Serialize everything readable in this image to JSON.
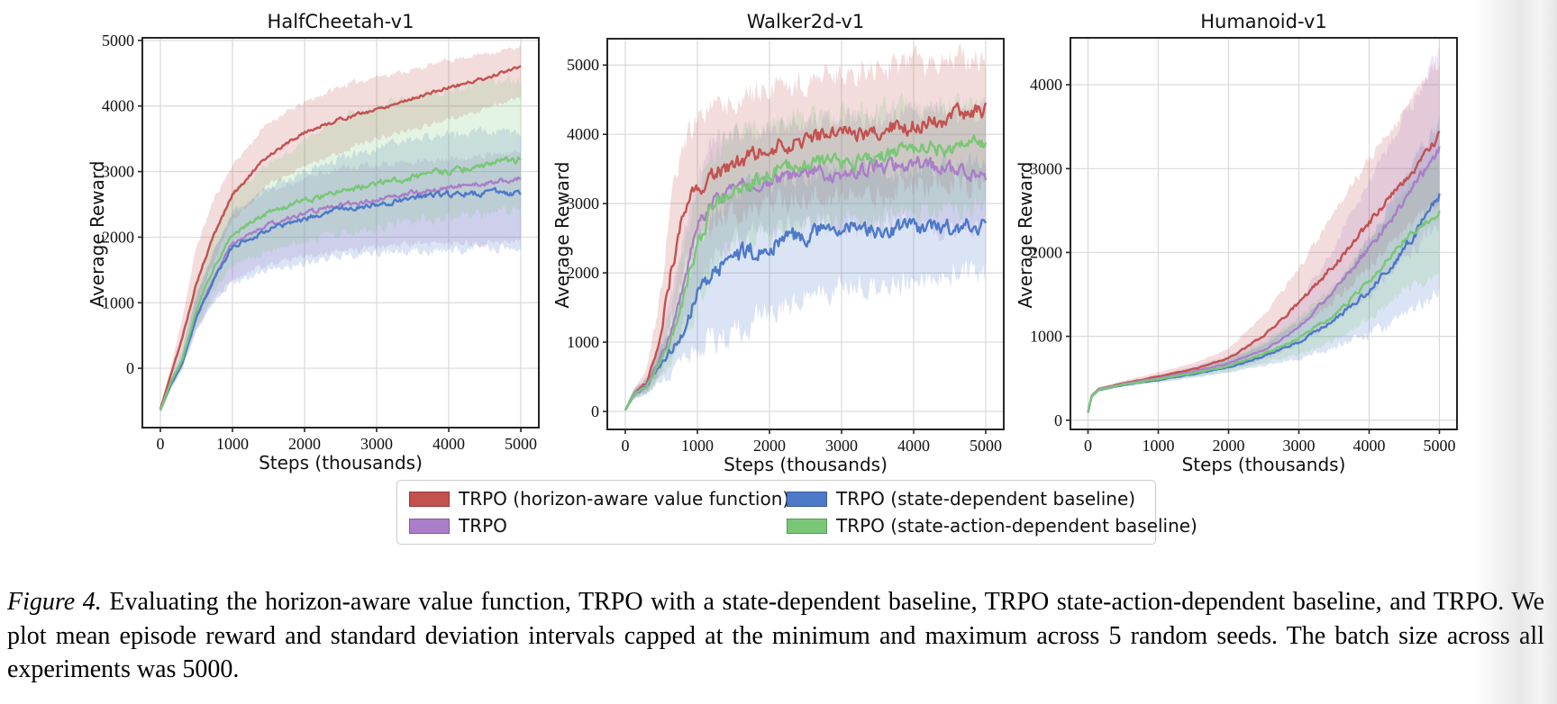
{
  "figure": {
    "caption_label": "Figure 4.",
    "caption_text": "Evaluating the horizon-aware value function, TRPO with a state-dependent baseline, TRPO state-action-dependent baseline, and TRPO. We plot mean episode reward and standard deviation intervals capped at the minimum and maximum across 5 random seeds. The batch size across all experiments was 5000."
  },
  "legend": {
    "position": "bottom-center",
    "ncol": 2,
    "entries": [
      {
        "label": "TRPO (horizon-aware value function)",
        "color": "#c35150"
      },
      {
        "label": "TRPO",
        "color": "#aa7ec8"
      },
      {
        "label": "TRPO (state-dependent baseline)",
        "color": "#4d79c8"
      },
      {
        "label": "TRPO (state-action-dependent baseline)",
        "color": "#79c776"
      }
    ]
  },
  "chart_data": [
    {
      "type": "line",
      "title": "HalfCheetah-v1",
      "xlabel": "Steps (thousands)",
      "ylabel": "Average Reward",
      "xlim": [
        -250,
        5250
      ],
      "ylim": [
        -905,
        5040
      ],
      "xticks": [
        0,
        1000,
        2000,
        3000,
        4000,
        5000
      ],
      "yticks": [
        0,
        1000,
        2000,
        3000,
        4000,
        5000
      ],
      "grid": true,
      "noise": 0.05,
      "x": [
        0,
        150,
        300,
        500,
        750,
        1000,
        1500,
        2000,
        2500,
        3000,
        3500,
        4000,
        4500,
        5000
      ],
      "series": [
        {
          "name": "TRPO (horizon-aware value function)",
          "color": "#c35150",
          "mean": [
            -620,
            -80,
            450,
            1300,
            2050,
            2650,
            3250,
            3600,
            3800,
            3950,
            4120,
            4280,
            4420,
            4600
          ],
          "lo": [
            -660,
            -180,
            250,
            950,
            1650,
            2250,
            2800,
            3100,
            3300,
            3500,
            3650,
            3800,
            3950,
            4150
          ],
          "hi": [
            -580,
            30,
            750,
            1850,
            2600,
            3100,
            3750,
            4050,
            4300,
            4450,
            4550,
            4700,
            4800,
            4900
          ]
        },
        {
          "name": "TRPO",
          "color": "#aa7ec8",
          "mean": [
            -640,
            -230,
            80,
            800,
            1400,
            1900,
            2200,
            2350,
            2500,
            2570,
            2680,
            2760,
            2820,
            2890
          ],
          "lo": [
            -670,
            -300,
            0,
            600,
            1080,
            1350,
            1600,
            1700,
            1800,
            1850,
            1900,
            1900,
            1920,
            1950
          ],
          "hi": [
            -610,
            -140,
            250,
            1150,
            1820,
            2350,
            2700,
            2900,
            3050,
            3100,
            3150,
            3200,
            3250,
            3300
          ]
        },
        {
          "name": "TRPO (state-dependent baseline)",
          "color": "#4d79c8",
          "mean": [
            -640,
            -240,
            60,
            780,
            1380,
            1850,
            2120,
            2280,
            2420,
            2500,
            2600,
            2640,
            2680,
            2680
          ],
          "lo": [
            -670,
            -310,
            -20,
            580,
            1020,
            1300,
            1500,
            1600,
            1700,
            1750,
            1800,
            1800,
            1820,
            1850
          ],
          "hi": [
            -610,
            -150,
            230,
            1100,
            1780,
            2400,
            2750,
            3000,
            3200,
            3350,
            3500,
            3550,
            3600,
            3600
          ]
        },
        {
          "name": "TRPO (state-action-dependent baseline)",
          "color": "#79c776",
          "mean": [
            -640,
            -200,
            120,
            900,
            1550,
            2050,
            2380,
            2550,
            2700,
            2820,
            2920,
            3000,
            3100,
            3190
          ],
          "lo": [
            -670,
            -280,
            40,
            650,
            1200,
            1550,
            1800,
            1950,
            2050,
            2150,
            2250,
            2300,
            2350,
            2400
          ],
          "hi": [
            -610,
            -100,
            300,
            1300,
            2080,
            2700,
            3100,
            3500,
            3800,
            4000,
            4150,
            4250,
            4350,
            4400
          ]
        }
      ]
    },
    {
      "type": "line",
      "title": "Walker2d-v1",
      "xlabel": "Steps (thousands)",
      "ylabel": "Average Reward",
      "xlim": [
        -250,
        5250
      ],
      "ylim": [
        -260,
        5380
      ],
      "xticks": [
        0,
        1000,
        2000,
        3000,
        4000,
        5000
      ],
      "yticks": [
        0,
        1000,
        2000,
        3000,
        4000,
        5000
      ],
      "grid": true,
      "noise": 0.13,
      "x": [
        0,
        120,
        300,
        500,
        650,
        800,
        1000,
        1250,
        1500,
        2000,
        2500,
        3000,
        3500,
        4000,
        4500,
        5000
      ],
      "series": [
        {
          "name": "TRPO (horizon-aware value function)",
          "color": "#c35150",
          "mean": [
            20,
            260,
            420,
            1150,
            2100,
            2900,
            3250,
            3450,
            3550,
            3800,
            3950,
            4000,
            4050,
            4150,
            4250,
            4300
          ],
          "lo": [
            0,
            200,
            300,
            700,
            1300,
            2100,
            2500,
            2700,
            2800,
            3000,
            3100,
            3100,
            3150,
            3250,
            3300,
            3300
          ],
          "hi": [
            50,
            330,
            600,
            1800,
            3100,
            3800,
            4200,
            4400,
            4500,
            4650,
            4750,
            4850,
            4950,
            5050,
            5100,
            5100
          ]
        },
        {
          "name": "TRPO",
          "color": "#aa7ec8",
          "mean": [
            20,
            250,
            380,
            800,
            1200,
            1800,
            2700,
            3100,
            3250,
            3300,
            3500,
            3400,
            3550,
            3600,
            3500,
            3450
          ],
          "lo": [
            0,
            190,
            280,
            550,
            800,
            1200,
            1700,
            2200,
            2500,
            2600,
            2700,
            2650,
            2700,
            2750,
            2650,
            2600
          ],
          "hi": [
            50,
            320,
            500,
            1100,
            1700,
            2500,
            3500,
            3900,
            4000,
            4100,
            4200,
            4150,
            4250,
            4300,
            4300,
            4300
          ]
        },
        {
          "name": "TRPO (state-dependent baseline)",
          "color": "#4d79c8",
          "mean": [
            20,
            240,
            360,
            700,
            900,
            1150,
            1700,
            2050,
            2250,
            2350,
            2550,
            2700,
            2600,
            2650,
            2650,
            2700
          ],
          "lo": [
            0,
            180,
            260,
            450,
            550,
            700,
            900,
            1050,
            1150,
            1400,
            1700,
            1800,
            1850,
            1900,
            1950,
            2000
          ],
          "hi": [
            50,
            310,
            470,
            950,
            1300,
            1700,
            2500,
            2900,
            3100,
            3300,
            3400,
            3500,
            3450,
            3500,
            3550,
            3600
          ]
        },
        {
          "name": "TRPO (state-action-dependent baseline)",
          "color": "#79c776",
          "mean": [
            20,
            250,
            370,
            750,
            1100,
            1600,
            2450,
            3000,
            3200,
            3450,
            3600,
            3600,
            3650,
            3800,
            3800,
            3880
          ],
          "lo": [
            0,
            190,
            270,
            500,
            700,
            1100,
            1500,
            2100,
            2400,
            2500,
            2700,
            2750,
            2800,
            2900,
            2900,
            2950
          ],
          "hi": [
            50,
            320,
            480,
            1000,
            1550,
            2300,
            3300,
            3800,
            3950,
            4150,
            4250,
            4300,
            4350,
            4400,
            4400,
            4400
          ]
        }
      ]
    },
    {
      "type": "line",
      "title": "Humanoid-v1",
      "xlabel": "Steps (thousands)",
      "ylabel": "Average Reward",
      "xlim": [
        -250,
        5250
      ],
      "ylim": [
        -110,
        4560
      ],
      "xticks": [
        0,
        1000,
        2000,
        3000,
        4000,
        5000
      ],
      "yticks": [
        0,
        1000,
        2000,
        3000,
        4000
      ],
      "grid": true,
      "noise": 0.06,
      "x": [
        0,
        50,
        150,
        500,
        1000,
        1500,
        2000,
        2500,
        3000,
        3500,
        4000,
        4500,
        5000
      ],
      "series": [
        {
          "name": "TRPO (horizon-aware value function)",
          "color": "#c35150",
          "mean": [
            90,
            290,
            370,
            440,
            520,
            610,
            740,
            1000,
            1400,
            1850,
            2350,
            2850,
            3400
          ],
          "lo": [
            80,
            270,
            350,
            415,
            480,
            560,
            660,
            850,
            1120,
            1420,
            1800,
            2250,
            2600
          ],
          "hi": [
            100,
            310,
            395,
            470,
            570,
            680,
            850,
            1250,
            1800,
            2450,
            3100,
            3700,
            4300
          ]
        },
        {
          "name": "TRPO",
          "color": "#aa7ec8",
          "mean": [
            90,
            285,
            365,
            430,
            500,
            580,
            680,
            830,
            1100,
            1550,
            2050,
            2600,
            3250
          ],
          "lo": [
            80,
            265,
            345,
            408,
            468,
            535,
            615,
            720,
            900,
            1180,
            1500,
            1950,
            2350
          ],
          "hi": [
            100,
            305,
            390,
            455,
            540,
            640,
            770,
            1000,
            1400,
            2050,
            2850,
            3600,
            4400
          ]
        },
        {
          "name": "TRPO (state-dependent baseline)",
          "color": "#4d79c8",
          "mean": [
            90,
            280,
            360,
            420,
            480,
            550,
            630,
            760,
            930,
            1180,
            1550,
            2050,
            2680
          ],
          "lo": [
            80,
            260,
            340,
            398,
            450,
            505,
            565,
            650,
            740,
            870,
            1020,
            1250,
            1550
          ],
          "hi": [
            100,
            300,
            385,
            445,
            520,
            610,
            720,
            900,
            1180,
            1550,
            2150,
            2900,
            3550
          ]
        },
        {
          "name": "TRPO (state-action-dependent baseline)",
          "color": "#79c776",
          "mean": [
            90,
            282,
            362,
            425,
            490,
            560,
            645,
            790,
            980,
            1250,
            1650,
            2150,
            2480
          ],
          "lo": [
            80,
            262,
            342,
            402,
            458,
            515,
            580,
            680,
            790,
            950,
            1200,
            1550,
            1750
          ],
          "hi": [
            100,
            302,
            387,
            450,
            530,
            620,
            730,
            930,
            1230,
            1600,
            2150,
            2750,
            3150
          ]
        }
      ]
    }
  ]
}
